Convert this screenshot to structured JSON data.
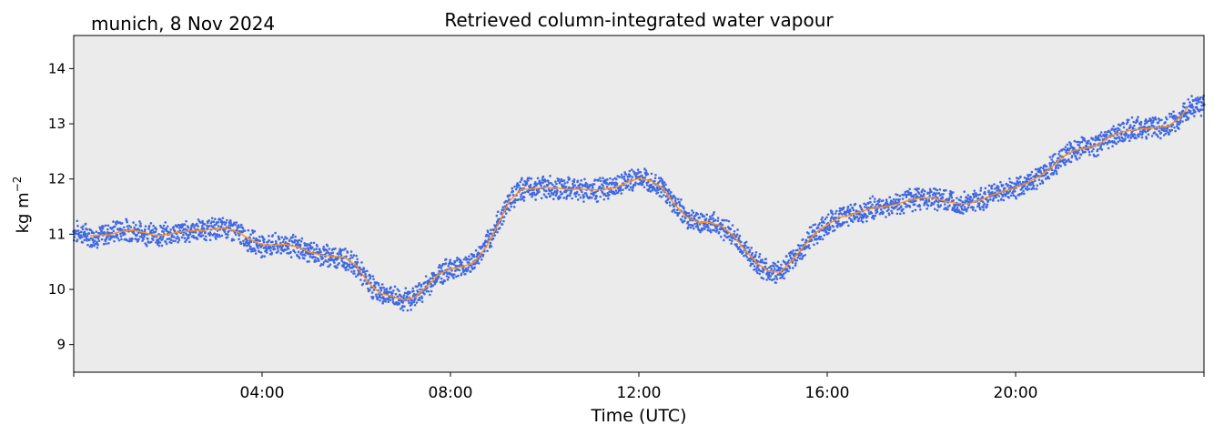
{
  "chart_data": {
    "type": "line",
    "title": "Retrieved column-integrated water vapour",
    "location_date": "munich, 8 Nov 2024",
    "xlabel": "Time (UTC)",
    "ylabel": "kg m",
    "ylabel_superscript": "−2",
    "xlim_hours": [
      0,
      24
    ],
    "ylim": [
      8.5,
      14.6
    ],
    "x_ticks": [
      {
        "hour": 4,
        "label": "04:00"
      },
      {
        "hour": 8,
        "label": "08:00"
      },
      {
        "hour": 12,
        "label": "12:00"
      },
      {
        "hour": 16,
        "label": "16:00"
      },
      {
        "hour": 20,
        "label": "20:00"
      }
    ],
    "y_ticks": [
      9,
      10,
      11,
      12,
      13,
      14
    ],
    "grid": false,
    "background_color": "#ebebeb",
    "series": [
      {
        "kind": "scatter",
        "color": "#4169e1",
        "x": [
          0.0,
          0.25,
          0.5,
          0.75,
          1.0,
          1.25,
          1.5,
          1.75,
          2.0,
          2.25,
          2.5,
          2.75,
          3.0,
          3.25,
          3.5,
          3.75,
          4.0,
          4.25,
          4.5,
          4.75,
          5.0,
          5.25,
          5.5,
          5.75,
          6.0,
          6.25,
          6.5,
          6.75,
          7.0,
          7.25,
          7.5,
          7.75,
          8.0,
          8.25,
          8.5,
          8.75,
          9.0,
          9.25,
          9.5,
          9.75,
          10.0,
          10.25,
          10.5,
          10.75,
          11.0,
          11.25,
          11.5,
          11.75,
          12.0,
          12.25,
          12.5,
          12.75,
          13.0,
          13.25,
          13.5,
          13.75,
          14.0,
          14.25,
          14.5,
          14.75,
          15.0,
          15.25,
          15.5,
          15.75,
          16.0,
          16.25,
          16.5,
          16.75,
          17.0,
          17.25,
          17.5,
          17.75,
          18.0,
          18.25,
          18.5,
          18.75,
          19.0,
          19.25,
          19.5,
          19.75,
          20.0,
          20.25,
          20.5,
          20.75,
          21.0,
          21.25,
          21.5,
          21.75,
          22.0,
          22.25,
          22.5,
          22.75,
          23.0,
          23.25,
          23.5,
          23.75,
          24.0
        ],
        "y": [
          11.05,
          11.0,
          10.95,
          11.02,
          11.08,
          11.06,
          11.02,
          10.97,
          11.0,
          11.04,
          11.06,
          11.07,
          11.1,
          11.12,
          11.02,
          10.88,
          10.8,
          10.8,
          10.82,
          10.76,
          10.68,
          10.62,
          10.6,
          10.58,
          10.42,
          10.12,
          9.93,
          9.88,
          9.8,
          9.87,
          10.05,
          10.28,
          10.38,
          10.42,
          10.5,
          10.78,
          11.18,
          11.62,
          11.82,
          11.83,
          11.86,
          11.84,
          11.81,
          11.82,
          11.8,
          11.82,
          11.85,
          11.95,
          12.02,
          11.98,
          11.85,
          11.55,
          11.32,
          11.22,
          11.21,
          11.15,
          10.98,
          10.72,
          10.48,
          10.32,
          10.3,
          10.52,
          10.78,
          11.02,
          11.18,
          11.3,
          11.35,
          11.42,
          11.48,
          11.5,
          11.55,
          11.62,
          11.66,
          11.66,
          11.6,
          11.56,
          11.55,
          11.62,
          11.72,
          11.78,
          11.84,
          11.94,
          12.05,
          12.2,
          12.4,
          12.52,
          12.56,
          12.62,
          12.77,
          12.85,
          12.9,
          12.92,
          12.93,
          12.96,
          13.12,
          13.3,
          13.35
        ]
      },
      {
        "kind": "line",
        "color": "#ff8c1a",
        "x": [
          0.35,
          0.75,
          1.0,
          1.25,
          1.5,
          1.75,
          2.0,
          2.25,
          2.5,
          2.75,
          3.0,
          3.25,
          3.5,
          3.75,
          4.0,
          4.25,
          4.5,
          4.75,
          5.0,
          5.25,
          5.5,
          5.75,
          6.0,
          6.25,
          6.5,
          6.75,
          7.0,
          7.25,
          7.5,
          7.75,
          8.0,
          8.25,
          8.5,
          8.75,
          9.0,
          9.25,
          9.5,
          9.75,
          10.0,
          10.25,
          10.5,
          10.75,
          11.0,
          11.25,
          11.5,
          11.75,
          12.0,
          12.25,
          12.5,
          12.75,
          13.0,
          13.25,
          13.5,
          13.75,
          14.0,
          14.25,
          14.5,
          14.75,
          15.0,
          15.25,
          15.5,
          15.75,
          16.0,
          16.25,
          16.5,
          16.75,
          17.0,
          17.25,
          17.5,
          17.75,
          18.0,
          18.25,
          18.5,
          18.75,
          19.0,
          19.25,
          19.5,
          19.75,
          20.0,
          20.25,
          20.5,
          20.75,
          21.0,
          21.25,
          21.5,
          21.75,
          22.0,
          22.25,
          22.5,
          22.75,
          23.0,
          23.25,
          23.5,
          23.65
        ],
        "y": [
          10.97,
          10.99,
          11.05,
          11.07,
          11.03,
          10.97,
          11.0,
          11.04,
          11.06,
          11.07,
          11.1,
          11.11,
          11.03,
          10.9,
          10.81,
          10.8,
          10.82,
          10.77,
          10.68,
          10.62,
          10.6,
          10.58,
          10.43,
          10.13,
          9.93,
          9.88,
          9.81,
          9.86,
          10.05,
          10.28,
          10.37,
          10.41,
          10.49,
          10.76,
          11.16,
          11.6,
          11.81,
          11.82,
          11.85,
          11.84,
          11.81,
          11.82,
          11.8,
          11.81,
          11.84,
          11.94,
          12.01,
          11.97,
          11.84,
          11.55,
          11.32,
          11.22,
          11.21,
          11.15,
          10.98,
          10.72,
          10.48,
          10.33,
          10.31,
          10.52,
          10.78,
          11.02,
          11.17,
          11.3,
          11.35,
          11.42,
          11.48,
          11.5,
          11.55,
          11.62,
          11.66,
          11.66,
          11.6,
          11.56,
          11.55,
          11.62,
          11.71,
          11.78,
          11.84,
          11.93,
          12.05,
          12.2,
          12.4,
          12.52,
          12.56,
          12.62,
          12.77,
          12.85,
          12.89,
          12.91,
          12.93,
          12.96,
          13.12,
          13.29
        ]
      }
    ]
  }
}
